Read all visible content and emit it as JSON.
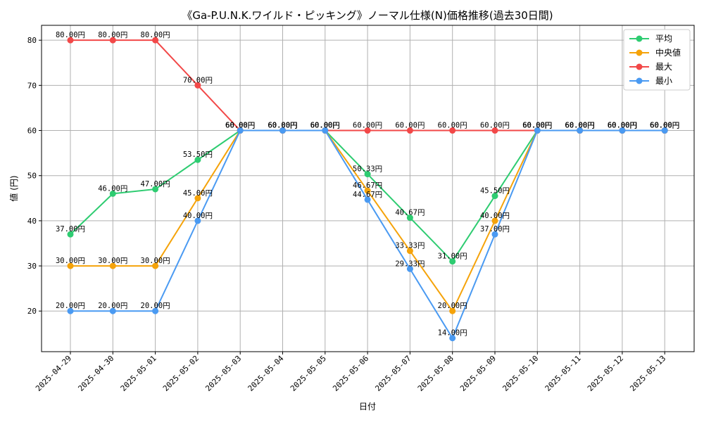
{
  "chart_data": {
    "type": "line",
    "title": "《Ga-P.U.N.K.ワイルド・ピッキング》ノーマル仕様(N)価格推移(過去30日間)",
    "xlabel": "日付",
    "ylabel": "値 (円)",
    "ylim": [
      11.0,
      83.3
    ],
    "yticks": [
      20,
      30,
      40,
      50,
      60,
      70,
      80
    ],
    "grid": true,
    "legend_position": "top-right",
    "label_suffix": "円",
    "categories": [
      "2025-04-29",
      "2025-04-30",
      "2025-05-01",
      "2025-05-02",
      "2025-05-03",
      "2025-05-04",
      "2025-05-05",
      "2025-05-06",
      "2025-05-07",
      "2025-05-08",
      "2025-05-09",
      "2025-05-10",
      "2025-05-11",
      "2025-05-12",
      "2025-05-13"
    ],
    "series": [
      {
        "name": "平均",
        "color": "#2ecc71",
        "values": [
          37.0,
          46.0,
          47.0,
          53.5,
          60.0,
          60.0,
          60.0,
          50.33,
          40.67,
          31.0,
          45.5,
          60.0,
          60.0,
          60.0,
          60.0
        ]
      },
      {
        "name": "中央値",
        "color": "#f5a30a",
        "values": [
          30.0,
          30.0,
          30.0,
          45.0,
          60.0,
          60.0,
          60.0,
          46.67,
          33.33,
          20.0,
          40.0,
          60.0,
          60.0,
          60.0,
          60.0
        ]
      },
      {
        "name": "最大",
        "color": "#f24848",
        "values": [
          80.0,
          80.0,
          80.0,
          70.0,
          60.0,
          60.0,
          60.0,
          60.0,
          60.0,
          60.0,
          60.0,
          60.0,
          60.0,
          60.0,
          60.0
        ]
      },
      {
        "name": "最小",
        "color": "#4a9af2",
        "values": [
          20.0,
          20.0,
          20.0,
          40.0,
          60.0,
          60.0,
          60.0,
          44.67,
          29.33,
          14.0,
          37.0,
          60.0,
          60.0,
          60.0,
          60.0
        ]
      }
    ]
  }
}
